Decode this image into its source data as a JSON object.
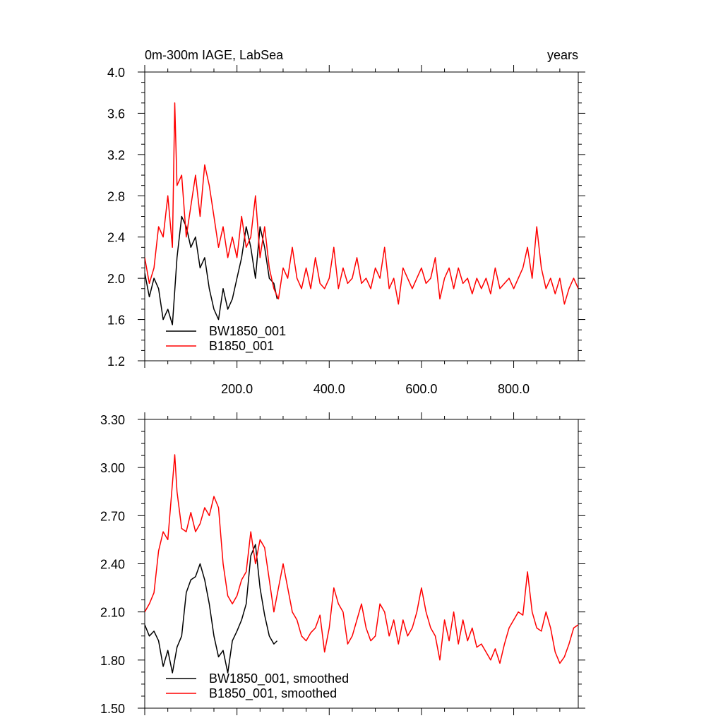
{
  "chart_data": [
    {
      "type": "line",
      "title_left": "0m-300m IAGE, LabSea",
      "title_right": "years",
      "xlim": [
        0,
        940
      ],
      "ylim": [
        1.2,
        4.0
      ],
      "xticks": [
        200,
        400,
        600,
        800
      ],
      "xtick_labels": [
        "200.0",
        "400.0",
        "600.0",
        "800.0"
      ],
      "yticks": [
        1.2,
        1.6,
        2.0,
        2.4,
        2.8,
        3.2,
        3.6,
        4.0
      ],
      "ytick_labels": [
        "1.2",
        "1.6",
        "2.0",
        "2.4",
        "2.8",
        "3.2",
        "3.6",
        "4.0"
      ],
      "legend_position": "bottom-left",
      "series": [
        {
          "name": "BW1850_001",
          "color": "#000000",
          "x": [
            0,
            10,
            20,
            30,
            40,
            50,
            60,
            70,
            80,
            90,
            100,
            110,
            120,
            130,
            140,
            150,
            160,
            170,
            180,
            190,
            200,
            210,
            220,
            230,
            240,
            250,
            260,
            270,
            280,
            287
          ],
          "y": [
            2.05,
            1.82,
            2.0,
            1.9,
            1.6,
            1.7,
            1.55,
            2.2,
            2.6,
            2.5,
            2.3,
            2.4,
            2.1,
            2.2,
            1.9,
            1.7,
            1.6,
            1.9,
            1.7,
            1.8,
            2.0,
            2.2,
            2.5,
            2.3,
            2.0,
            2.5,
            2.3,
            2.0,
            1.95,
            1.8
          ]
        },
        {
          "name": "B1850_001",
          "color": "#ff0000",
          "x": [
            0,
            10,
            20,
            30,
            40,
            50,
            60,
            65,
            70,
            80,
            90,
            100,
            110,
            120,
            130,
            140,
            150,
            160,
            170,
            180,
            190,
            200,
            210,
            220,
            230,
            240,
            250,
            260,
            270,
            280,
            290,
            300,
            310,
            320,
            330,
            340,
            350,
            360,
            370,
            380,
            390,
            400,
            410,
            420,
            430,
            440,
            450,
            460,
            470,
            480,
            490,
            500,
            510,
            520,
            530,
            540,
            550,
            560,
            570,
            580,
            590,
            600,
            610,
            620,
            630,
            640,
            650,
            660,
            670,
            680,
            690,
            700,
            710,
            720,
            730,
            740,
            750,
            760,
            770,
            780,
            790,
            800,
            810,
            820,
            830,
            840,
            850,
            860,
            870,
            880,
            890,
            900,
            910,
            920,
            930,
            940
          ],
          "y": [
            2.2,
            1.95,
            2.1,
            2.5,
            2.4,
            2.8,
            2.3,
            3.7,
            2.9,
            3.0,
            2.4,
            2.7,
            3.0,
            2.6,
            3.1,
            2.9,
            2.6,
            2.3,
            2.5,
            2.2,
            2.4,
            2.2,
            2.6,
            2.3,
            2.4,
            2.8,
            2.2,
            2.5,
            2.1,
            1.9,
            1.8,
            2.1,
            2.0,
            2.3,
            2.0,
            1.9,
            2.1,
            1.9,
            2.2,
            1.95,
            1.9,
            2.0,
            2.3,
            1.9,
            2.1,
            1.95,
            2.0,
            2.2,
            1.95,
            2.0,
            1.9,
            2.1,
            2.0,
            2.3,
            1.9,
            2.0,
            1.75,
            2.1,
            2.0,
            1.9,
            2.0,
            2.1,
            1.95,
            2.0,
            2.2,
            1.8,
            2.0,
            2.1,
            1.9,
            2.1,
            1.95,
            2.0,
            1.85,
            2.0,
            1.9,
            2.0,
            1.85,
            2.1,
            1.9,
            1.95,
            2.0,
            1.9,
            2.0,
            2.1,
            2.3,
            2.0,
            2.5,
            2.1,
            1.9,
            2.0,
            1.85,
            2.0,
            1.75,
            1.9,
            2.0,
            1.9
          ]
        }
      ]
    },
    {
      "type": "line",
      "xlim": [
        0,
        940
      ],
      "ylim": [
        1.5,
        3.3
      ],
      "yticks": [
        1.5,
        1.8,
        2.1,
        2.4,
        2.7,
        3.0,
        3.3
      ],
      "ytick_labels": [
        "1.50",
        "1.80",
        "2.10",
        "2.40",
        "2.70",
        "3.00",
        "3.30"
      ],
      "legend_position": "bottom-left",
      "series": [
        {
          "name": "BW1850_001, smoothed",
          "color": "#000000",
          "x": [
            0,
            10,
            20,
            30,
            40,
            50,
            60,
            70,
            80,
            90,
            100,
            110,
            120,
            130,
            140,
            150,
            160,
            170,
            180,
            190,
            200,
            210,
            220,
            230,
            240,
            250,
            260,
            270,
            280,
            287
          ],
          "y": [
            2.02,
            1.95,
            1.98,
            1.92,
            1.76,
            1.86,
            1.72,
            1.88,
            1.95,
            2.22,
            2.3,
            2.32,
            2.4,
            2.3,
            2.15,
            1.95,
            1.82,
            1.86,
            1.72,
            1.92,
            1.98,
            2.05,
            2.15,
            2.45,
            2.52,
            2.25,
            2.08,
            1.95,
            1.9,
            1.92
          ]
        },
        {
          "name": "B1850_001, smoothed",
          "color": "#ff0000",
          "x": [
            0,
            10,
            20,
            30,
            40,
            50,
            60,
            65,
            70,
            80,
            90,
            100,
            110,
            120,
            130,
            140,
            150,
            160,
            170,
            180,
            190,
            200,
            210,
            220,
            230,
            240,
            250,
            260,
            270,
            280,
            290,
            300,
            310,
            320,
            330,
            340,
            350,
            360,
            370,
            380,
            390,
            400,
            410,
            420,
            430,
            440,
            450,
            460,
            470,
            480,
            490,
            500,
            510,
            520,
            530,
            540,
            550,
            560,
            570,
            580,
            590,
            600,
            610,
            620,
            630,
            640,
            650,
            660,
            670,
            680,
            690,
            700,
            710,
            720,
            730,
            740,
            750,
            760,
            770,
            780,
            790,
            800,
            810,
            820,
            830,
            840,
            850,
            860,
            870,
            880,
            890,
            900,
            910,
            920,
            930,
            940
          ],
          "y": [
            2.1,
            2.15,
            2.22,
            2.48,
            2.6,
            2.55,
            2.9,
            3.08,
            2.85,
            2.62,
            2.6,
            2.72,
            2.6,
            2.65,
            2.75,
            2.7,
            2.82,
            2.75,
            2.4,
            2.2,
            2.15,
            2.2,
            2.3,
            2.35,
            2.6,
            2.4,
            2.55,
            2.5,
            2.3,
            2.1,
            2.25,
            2.4,
            2.25,
            2.1,
            2.05,
            1.95,
            1.92,
            1.97,
            2.0,
            2.08,
            1.85,
            2.0,
            2.25,
            2.15,
            2.1,
            1.9,
            1.95,
            2.05,
            2.15,
            2.0,
            1.92,
            1.95,
            2.15,
            2.1,
            1.95,
            2.05,
            1.9,
            2.05,
            1.95,
            2.0,
            2.1,
            2.25,
            2.1,
            2.0,
            1.95,
            1.8,
            2.05,
            1.92,
            2.1,
            1.9,
            2.05,
            1.92,
            2.0,
            1.88,
            1.9,
            1.85,
            1.8,
            1.87,
            1.78,
            1.9,
            2.0,
            2.05,
            2.1,
            2.08,
            2.35,
            2.1,
            2.0,
            1.98,
            2.1,
            2.0,
            1.85,
            1.78,
            1.82,
            1.9,
            2.0,
            2.02
          ]
        }
      ]
    }
  ]
}
